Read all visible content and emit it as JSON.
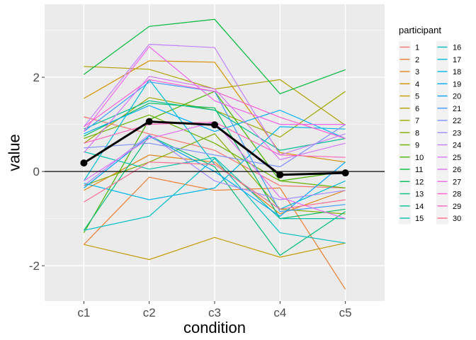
{
  "chart_data": {
    "type": "line",
    "xlabel": "condition",
    "ylabel": "value",
    "legend_title": "participant",
    "legend_position": "right",
    "grid": true,
    "ylim": [
      -2.75,
      3.55
    ],
    "categories": [
      "c1",
      "c2",
      "c3",
      "c4",
      "c5"
    ],
    "y_ticks": [
      {
        "value": -2,
        "label": "-2"
      },
      {
        "value": 0,
        "label": "0"
      },
      {
        "value": 2,
        "label": "2"
      }
    ],
    "reference_line_y": 0,
    "mean_series": {
      "values": [
        0.18,
        1.06,
        0.99,
        -0.07,
        -0.03
      ],
      "color": "#000000"
    },
    "series": [
      {
        "name": "1",
        "color": "#F8766D",
        "values": [
          1.16,
          0.8,
          0.45,
          -0.3,
          -0.35
        ]
      },
      {
        "name": "2",
        "color": "#EE7E33",
        "values": [
          -1.55,
          -0.12,
          -0.4,
          -0.35,
          -2.5
        ]
      },
      {
        "name": "3",
        "color": "#E2871E",
        "values": [
          -0.4,
          0.35,
          0.2,
          -0.9,
          -0.4
        ]
      },
      {
        "name": "4",
        "color": "#D49000",
        "values": [
          1.55,
          2.35,
          2.32,
          0.4,
          0.2
        ]
      },
      {
        "name": "5",
        "color": "#C49A00",
        "values": [
          -1.55,
          -1.87,
          -1.4,
          -1.82,
          -1.52
        ]
      },
      {
        "name": "6",
        "color": "#B0A000",
        "values": [
          2.23,
          2.17,
          1.75,
          1.95,
          0.98
        ]
      },
      {
        "name": "7",
        "color": "#9CA700",
        "values": [
          0.6,
          1.57,
          1.3,
          0.73,
          1.7
        ]
      },
      {
        "name": "8",
        "color": "#85AD00",
        "values": [
          -0.3,
          0.2,
          0.8,
          -0.8,
          -0.9
        ]
      },
      {
        "name": "9",
        "color": "#6BB100",
        "values": [
          0.7,
          1.2,
          0.6,
          -0.2,
          -0.35
        ]
      },
      {
        "name": "10",
        "color": "#49B500",
        "values": [
          -1.3,
          1.1,
          1.7,
          -0.2,
          0.0
        ]
      },
      {
        "name": "11",
        "color": "#00BA38",
        "values": [
          2.06,
          3.08,
          3.23,
          1.65,
          2.16
        ]
      },
      {
        "name": "12",
        "color": "#00BC5A",
        "values": [
          0.75,
          1.45,
          1.35,
          -1.0,
          -0.8
        ]
      },
      {
        "name": "13",
        "color": "#00BE78",
        "values": [
          -1.25,
          0.76,
          0.1,
          -1.78,
          -0.85
        ]
      },
      {
        "name": "14",
        "color": "#00BF92",
        "values": [
          0.9,
          1.5,
          1.3,
          0.45,
          0.7
        ]
      },
      {
        "name": "15",
        "color": "#00C0AB",
        "values": [
          0.42,
          0.05,
          0.3,
          -1.0,
          -1.0
        ]
      },
      {
        "name": "16",
        "color": "#00BFC4",
        "values": [
          -1.25,
          -0.95,
          0.28,
          -1.3,
          -1.52
        ]
      },
      {
        "name": "17",
        "color": "#00BCD8",
        "values": [
          -0.2,
          1.95,
          0.15,
          -0.8,
          -0.2
        ]
      },
      {
        "name": "18",
        "color": "#00B6EB",
        "values": [
          -0.25,
          -0.6,
          -0.35,
          0.95,
          0.9
        ]
      },
      {
        "name": "19",
        "color": "#00ADFA",
        "values": [
          0.8,
          1.4,
          0.85,
          1.3,
          0.7
        ]
      },
      {
        "name": "20",
        "color": "#00A4FF",
        "values": [
          -0.35,
          0.75,
          0.0,
          -0.95,
          0.2
        ]
      },
      {
        "name": "21",
        "color": "#3D9BFF",
        "values": [
          0.85,
          1.9,
          1.7,
          -0.85,
          -0.7
        ]
      },
      {
        "name": "22",
        "color": "#7C90FF",
        "values": [
          0.5,
          0.6,
          0.35,
          0.1,
          1.0
        ]
      },
      {
        "name": "23",
        "color": "#A58AFF",
        "values": [
          -0.3,
          0.78,
          -0.2,
          -0.6,
          -0.4
        ]
      },
      {
        "name": "24",
        "color": "#C27FFF",
        "values": [
          0.95,
          2.7,
          2.63,
          0.35,
          0.8
        ]
      },
      {
        "name": "25",
        "color": "#D675FB",
        "values": [
          0.4,
          2.02,
          1.75,
          0.25,
          0.6
        ]
      },
      {
        "name": "26",
        "color": "#E36EF6",
        "values": [
          -0.2,
          0.7,
          1.05,
          -0.55,
          -1.0
        ]
      },
      {
        "name": "27",
        "color": "#F066EA",
        "values": [
          0.85,
          2.65,
          1.5,
          1.0,
          1.0
        ]
      },
      {
        "name": "28",
        "color": "#FC61D5",
        "values": [
          0.95,
          1.95,
          1.7,
          1.15,
          0.7
        ]
      },
      {
        "name": "29",
        "color": "#FF65BD",
        "values": [
          0.6,
          1.0,
          1.05,
          0.35,
          0.3
        ]
      },
      {
        "name": "30",
        "color": "#FF6C91",
        "values": [
          -0.65,
          0.2,
          0.15,
          -0.8,
          -0.6
        ]
      }
    ]
  }
}
